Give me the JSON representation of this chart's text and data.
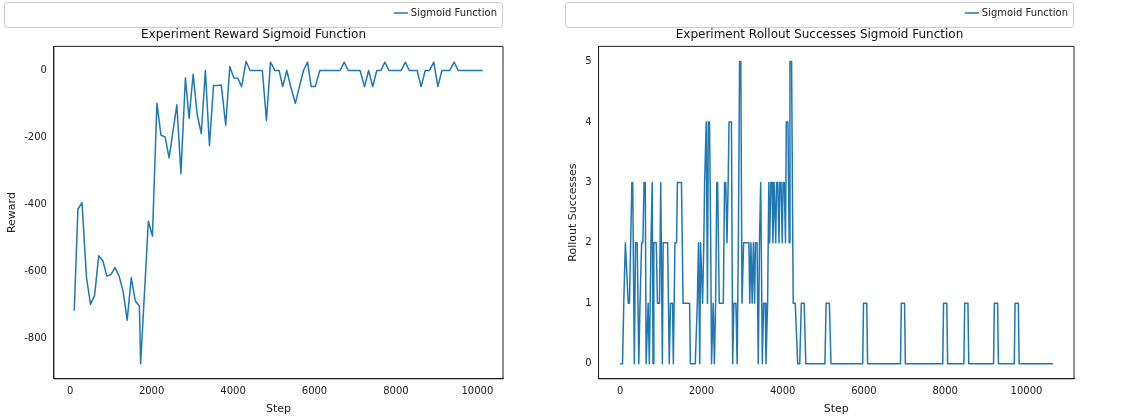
{
  "chart_data": [
    {
      "type": "line",
      "title": "Experiment Reward Sigmoid Function",
      "xlabel": "Step",
      "ylabel": "Reward",
      "legend": "top right",
      "grid": false,
      "x": [
        100,
        190,
        290,
        400,
        500,
        600,
        700,
        800,
        900,
        1000,
        1100,
        1200,
        1300,
        1400,
        1500,
        1600,
        1700,
        1730,
        1920,
        2020,
        2130,
        2230,
        2330,
        2430,
        2620,
        2720,
        2830,
        2920,
        3020,
        3120,
        3220,
        3320,
        3420,
        3520,
        3610,
        3710,
        3820,
        3920,
        4020,
        4120,
        4210,
        4320,
        4420,
        4720,
        4820,
        4920,
        5030,
        5130,
        5220,
        5320,
        5420,
        5530,
        5630,
        5730,
        5830,
        5920,
        6020,
        6130,
        6630,
        6730,
        6830,
        7120,
        7230,
        7330,
        7430,
        7530,
        7630,
        7730,
        7830,
        8130,
        8230,
        8330,
        8520,
        8620,
        8720,
        8820,
        8930,
        9030,
        9130,
        9320,
        9430,
        9530,
        10130
      ],
      "series": [
        {
          "name": "Sigmoid Function",
          "color": "#1f77b4",
          "values": [
            -717,
            -414,
            -394,
            -617,
            -698,
            -671,
            -553,
            -567,
            -613,
            -609,
            -588,
            -613,
            -659,
            -745,
            -618,
            -688,
            -703,
            -875,
            -450,
            -494,
            -98,
            -193,
            -198,
            -261,
            -102,
            -307,
            -22,
            -143,
            -11,
            -132,
            -188,
            0,
            -224,
            -45,
            -45,
            -43,
            -163,
            12,
            -22,
            -23,
            -48,
            27,
            0,
            0,
            -149,
            25,
            0,
            0,
            -48,
            0,
            -50,
            -98,
            -48,
            0,
            25,
            -48,
            -48,
            0,
            0,
            25,
            0,
            0,
            -48,
            0,
            -48,
            0,
            0,
            25,
            0,
            0,
            25,
            0,
            0,
            -48,
            0,
            0,
            25,
            -48,
            0,
            0,
            25,
            0,
            0
          ]
        }
      ],
      "xlim": [
        -400,
        10630
      ],
      "ylim": [
        -920,
        72
      ],
      "xticks": [
        0,
        2000,
        4000,
        6000,
        8000,
        10000
      ],
      "yticks": [
        -800,
        -600,
        -400,
        -200,
        0
      ]
    },
    {
      "type": "line",
      "title": "Experiment Rollout Successes Sigmoid Function",
      "xlabel": "Step",
      "ylabel": "Rollout Successes",
      "legend": "top right",
      "grid": false,
      "x": [
        0,
        60,
        90,
        130,
        200,
        230,
        290,
        310,
        350,
        380,
        420,
        460,
        490,
        530,
        560,
        590,
        620,
        640,
        690,
        720,
        760,
        790,
        810,
        830,
        890,
        920,
        970,
        1000,
        1040,
        1060,
        1170,
        1210,
        1240,
        1290,
        1310,
        1350,
        1390,
        1410,
        1510,
        1550,
        1710,
        1730,
        1850,
        1900,
        1930,
        1960,
        1980,
        2030,
        2060,
        2080,
        2120,
        2150,
        2170,
        2200,
        2230,
        2250,
        2290,
        2320,
        2350,
        2380,
        2400,
        2440,
        2540,
        2570,
        2600,
        2630,
        2660,
        2680,
        2740,
        2770,
        2800,
        2850,
        2880,
        2910,
        2940,
        2970,
        3000,
        3040,
        3170,
        3190,
        3220,
        3250,
        3280,
        3310,
        3330,
        3370,
        3400,
        3430,
        3460,
        3500,
        3530,
        3570,
        3590,
        3630,
        3660,
        3680,
        3710,
        3740,
        3760,
        3790,
        3830,
        3850,
        3880,
        3910,
        3930,
        3960,
        3990,
        4010,
        4040,
        4070,
        4090,
        4130,
        4160,
        4180,
        4220,
        4260,
        4310,
        4370,
        4420,
        4460,
        4530,
        4570,
        5040,
        5070,
        5150,
        5190,
        5970,
        5990,
        6070,
        6090,
        6900,
        6920,
        7000,
        7020,
        7940,
        7960,
        8040,
        8060,
        8460,
        8480,
        8560,
        8580,
        9190,
        9210,
        9290,
        9310,
        9700,
        9720,
        9800,
        9820,
        10650
      ],
      "series": [
        {
          "name": "Sigmoid Function",
          "color": "#1f77b4",
          "values": [
            0,
            0,
            1,
            2,
            1,
            1,
            3,
            3,
            0,
            2,
            2,
            0,
            1,
            2,
            2,
            3,
            3,
            0,
            1,
            0,
            2,
            3,
            0,
            2,
            2,
            1,
            1,
            3,
            0,
            2,
            2,
            0,
            1,
            1,
            0,
            2,
            2,
            3,
            3,
            1,
            1,
            0,
            0,
            1,
            2,
            0,
            2,
            1,
            2,
            3,
            4,
            1,
            4,
            4,
            2,
            0,
            1,
            0,
            1,
            3,
            3,
            1,
            1,
            3,
            3,
            2,
            3,
            4,
            4,
            0,
            1,
            1,
            0,
            2,
            5,
            5,
            1,
            2,
            2,
            1,
            2,
            1,
            2,
            1,
            2,
            2,
            0,
            2,
            3,
            0,
            1,
            1,
            0,
            1,
            3,
            2,
            3,
            3,
            2,
            3,
            2,
            3,
            3,
            2,
            3,
            3,
            2,
            3,
            3,
            2,
            4,
            4,
            2,
            5,
            5,
            1,
            1,
            0,
            0,
            1,
            1,
            0,
            0,
            1,
            1,
            0,
            0,
            1,
            1,
            0,
            0,
            1,
            1,
            0,
            0,
            1,
            1,
            0,
            0,
            1,
            1,
            0,
            0,
            1,
            1,
            0,
            0,
            1,
            1,
            0,
            0
          ]
        }
      ],
      "xlim": [
        -530,
        11170
      ],
      "ylim": [
        -0.25,
        5.25
      ],
      "xticks": [
        0,
        2000,
        4000,
        6000,
        8000,
        10000
      ],
      "yticks": [
        0,
        1,
        2,
        3,
        4,
        5
      ]
    }
  ]
}
